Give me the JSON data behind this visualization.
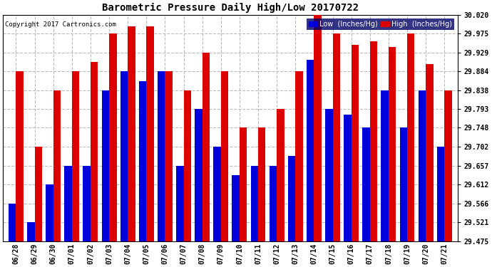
{
  "title": "Barometric Pressure Daily High/Low 20170722",
  "copyright": "Copyright 2017 Cartronics.com",
  "background_color": "#ffffff",
  "ylim_min": 29.475,
  "ylim_max": 30.02,
  "yticks": [
    29.475,
    29.521,
    29.566,
    29.612,
    29.657,
    29.702,
    29.748,
    29.793,
    29.838,
    29.884,
    29.929,
    29.975,
    30.02
  ],
  "dates": [
    "06/28",
    "06/29",
    "06/30",
    "07/01",
    "07/02",
    "07/03",
    "07/04",
    "07/05",
    "07/06",
    "07/07",
    "07/08",
    "07/09",
    "07/10",
    "07/11",
    "07/12",
    "07/13",
    "07/14",
    "07/15",
    "07/16",
    "07/17",
    "07/18",
    "07/19",
    "07/20",
    "07/21"
  ],
  "low": [
    29.566,
    29.521,
    29.612,
    29.657,
    29.657,
    29.838,
    29.884,
    29.86,
    29.884,
    29.657,
    29.793,
    29.702,
    29.634,
    29.657,
    29.657,
    29.68,
    29.912,
    29.793,
    29.78,
    29.748,
    29.838,
    29.748,
    29.838,
    29.702
  ],
  "high": [
    29.884,
    29.702,
    29.838,
    29.884,
    29.907,
    29.975,
    29.993,
    29.993,
    29.884,
    29.838,
    29.929,
    29.884,
    29.748,
    29.748,
    29.793,
    29.884,
    30.02,
    29.975,
    29.947,
    29.957,
    29.943,
    29.975,
    29.902,
    29.838
  ],
  "low_color": "#0000dd",
  "high_color": "#dd0000",
  "grid_color": "#bbbbbb",
  "bar_width": 0.4,
  "figure_width": 6.9,
  "figure_height": 3.75,
  "dpi": 100
}
